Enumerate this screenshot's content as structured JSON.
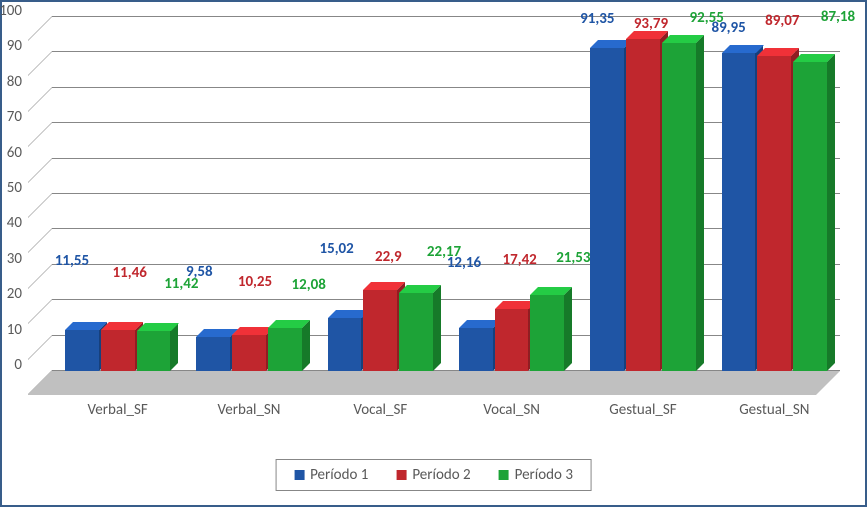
{
  "chart": {
    "type": "bar",
    "background_color": "#ffffff",
    "border_color": "#385d8a",
    "floor_color": "#c0c0c0",
    "grid_color": "#878787",
    "axis_font_color": "#595959",
    "axis_fontsize": 15,
    "label_fontsize": 15,
    "label_fontweight": "bold",
    "ylim_min": 0,
    "ylim_max": 100,
    "ytick_step": 10,
    "yticks": [
      0,
      10,
      20,
      30,
      40,
      50,
      60,
      70,
      80,
      90,
      100
    ],
    "ytick_labels": [
      "0",
      "10",
      "20",
      "30",
      "40",
      "50",
      "60",
      "70",
      "80",
      "90",
      "100"
    ],
    "categories": [
      "Verbal_SF",
      "Verbal_SN",
      "Vocal_SF",
      "Vocal_SN",
      "Gestual_SF",
      "Gestual_SN"
    ],
    "series": [
      {
        "name": "Período 1",
        "color": "#1f55a5",
        "values": [
          11.55,
          9.58,
          15.02,
          12.16,
          91.35,
          89.95
        ],
        "labels": [
          "11,55",
          "9,58",
          "15,02",
          "12,16",
          "91,35",
          "89,95"
        ]
      },
      {
        "name": "Período 2",
        "color": "#c0272d",
        "values": [
          11.46,
          10.25,
          22.9,
          17.42,
          93.79,
          89.07
        ],
        "labels": [
          "11,46",
          "10,25",
          "22,9",
          "17,42",
          "93,79",
          "89,07"
        ]
      },
      {
        "name": "Período 3",
        "color": "#1da337",
        "values": [
          11.42,
          12.08,
          22.17,
          21.53,
          92.55,
          87.18
        ],
        "labels": [
          "11,42",
          "12,08",
          "22,17",
          "21,53",
          "92,55",
          "87,18"
        ]
      }
    ],
    "label_offsets": [
      [
        [
          -10,
          60
        ],
        [
          12,
          48
        ],
        [
          28,
          38
        ]
      ],
      [
        [
          -14,
          56
        ],
        [
          6,
          44
        ],
        [
          24,
          34
        ]
      ],
      [
        [
          -8,
          60
        ],
        [
          8,
          24
        ],
        [
          28,
          32
        ]
      ],
      [
        [
          -12,
          56
        ],
        [
          8,
          40
        ],
        [
          26,
          28
        ]
      ],
      [
        [
          -10,
          20
        ],
        [
          8,
          6
        ],
        [
          28,
          16
        ]
      ],
      [
        [
          -10,
          16
        ],
        [
          8,
          26
        ],
        [
          28,
          36
        ]
      ]
    ],
    "legend": {
      "items": [
        "Período 1",
        "Período 2",
        "Período 3"
      ]
    }
  }
}
